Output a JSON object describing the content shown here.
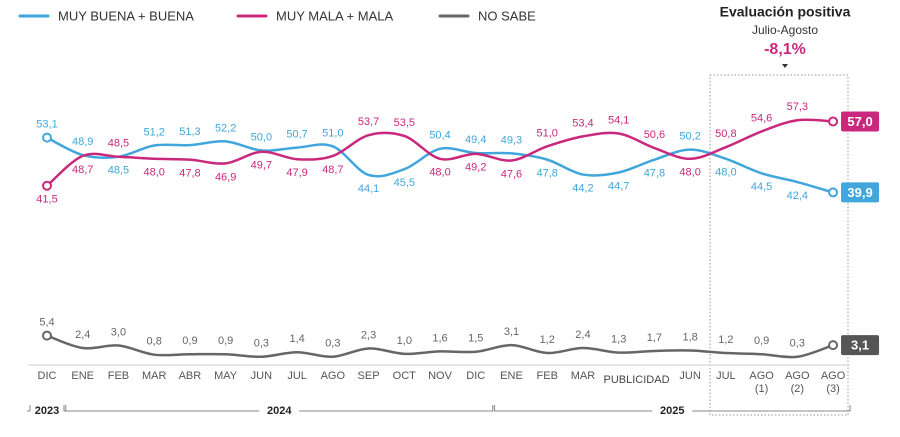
{
  "chart_data": {
    "type": "line",
    "annotations": {
      "title": "Evaluación positiva",
      "subtitle": "Julio-Agosto",
      "change": "-8,1%",
      "overlay": "PUBLICIDAD"
    },
    "years": [
      "2023",
      "2024",
      "2025"
    ],
    "categories": [
      "DIC",
      "ENE",
      "FEB",
      "MAR",
      "ABR",
      "MAY",
      "JUN",
      "JUL",
      "AGO",
      "SEP",
      "OCT",
      "NOV",
      "DIC",
      "ENE",
      "FEB",
      "MAR",
      null,
      null,
      "JUN",
      "JUL",
      "AGO (1)",
      "AGO (2)",
      "AGO (3)"
    ],
    "ylim": [
      0,
      60
    ],
    "series": [
      {
        "name": "MUY BUENA + BUENA",
        "color": "#41a6dc",
        "values": [
          53.1,
          48.9,
          48.5,
          51.2,
          51.3,
          52.2,
          50.0,
          50.7,
          51.0,
          44.1,
          45.5,
          50.4,
          49.4,
          49.3,
          47.8,
          44.2,
          44.7,
          47.8,
          50.2,
          48.0,
          44.5,
          42.4,
          39.9
        ],
        "value_labels": [
          "53,1",
          "48,9",
          "48,5",
          "51,2",
          "51,3",
          "52,2",
          "50,0",
          "50,7",
          "51,0",
          "44,1",
          "45,5",
          "50,4",
          "49,4",
          "49,3",
          "47,8",
          "44,2",
          "44,7",
          "47,8",
          "50,2",
          "48,0",
          "44,5",
          "42,4",
          "39,9"
        ]
      },
      {
        "name": "MUY MALA + MALA",
        "color": "#c9287c",
        "values": [
          41.5,
          48.7,
          48.5,
          48.0,
          47.8,
          46.9,
          49.7,
          47.9,
          48.7,
          53.7,
          53.5,
          48.0,
          49.2,
          47.6,
          51.0,
          53.4,
          54.1,
          50.6,
          48.0,
          50.8,
          54.6,
          57.3,
          57.0
        ],
        "value_labels": [
          "41,5",
          "48,7",
          "48,5",
          "48,0",
          "47,8",
          "46,9",
          "49,7",
          "47,9",
          "48,7",
          "53,7",
          "53,5",
          "48,0",
          "49,2",
          "47,6",
          "51,0",
          "53,4",
          "54,1",
          "50,6",
          "48,0",
          "50,8",
          "54,6",
          "57,3",
          "57,0"
        ]
      },
      {
        "name": "NO SABE",
        "color": "#666666",
        "values": [
          5.4,
          2.4,
          3.0,
          0.8,
          0.9,
          0.9,
          0.3,
          1.4,
          0.3,
          2.3,
          1.0,
          1.6,
          1.5,
          3.1,
          1.2,
          2.4,
          1.3,
          1.7,
          1.8,
          1.2,
          0.9,
          0.3,
          3.1
        ],
        "value_labels": [
          "5,4",
          "2,4",
          "3,0",
          "0,8",
          "0,9",
          "0,9",
          "0,3",
          "1,4",
          "0,3",
          "2,3",
          "1,0",
          "1,6",
          "1,5",
          "3,1",
          "1,2",
          "2,4",
          "1,3",
          "1,7",
          "1,8",
          "1,2",
          "0,9",
          "0,3",
          "3,1"
        ]
      }
    ]
  }
}
